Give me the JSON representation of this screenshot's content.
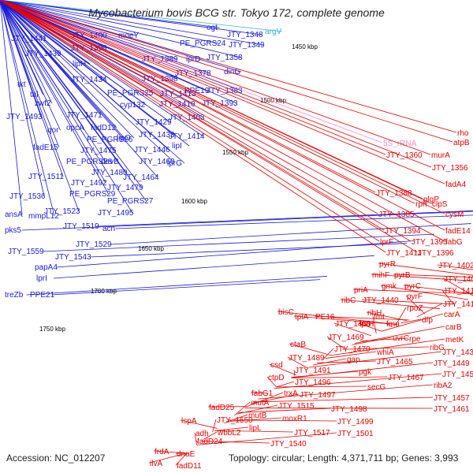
{
  "title": "Mycobacterium bovis BCG str. Tokyo 172, complete genome",
  "accession": "Accession: NC_012207",
  "topology": "Topology: circular; Length: 4,371,711 bp; Genes: 3,993",
  "colors": {
    "forward": "#1a1ad6",
    "reverse": "#e60000",
    "rna": "#ff8cc8",
    "trna": "#3ab0e0",
    "backbone": "#888888",
    "gc_mark": "#1e7a1e"
  },
  "kbp_ticks": [
    "1450 kbp",
    "1500 kbp",
    "1550 kbp",
    "1600 kbp",
    "1650 kbp",
    "1700 kbp",
    "1750 kbp"
  ],
  "blue_labels": [
    "JTY_1441",
    "JTY_1400",
    "moeY",
    "ogt",
    "JTY_1348",
    "argV",
    "JTY_1439",
    "JTY_1390",
    "PE_PGRS24",
    "JTY_1349",
    "lipH",
    "JTY_1389",
    "lprD",
    "JTY_1358",
    "JTY_1434",
    "JTY_1378",
    "dinG",
    "tkt",
    "JTY_1398",
    "PPE19",
    "JTY_1383",
    "tal",
    "PE_PGRS25",
    "JTY_1413",
    "zwf2",
    "cyp132",
    "JTY_1410",
    "JTY_1393",
    "JTY_1493",
    "JTY_1471",
    "JTY_1403",
    "qor",
    "opcA",
    "fadD12",
    "JTY_1429",
    "PE_PGRS26",
    "lipO",
    "JTY_1433",
    "JTY_1414",
    "fadE15",
    "JTY_1475",
    "lipI",
    "JTY_1446",
    "PE_PGRS28",
    "devB",
    "JTY_1460",
    "lprG",
    "JTY_1480",
    "JTY_1464",
    "JTY_1511",
    "JTY_1492",
    "JTY_1479",
    "PE_PGRS29",
    "PE_PGRS27",
    "JTY_1536",
    "JTY_1523",
    "JTY_1495",
    "pks5",
    "JTY_1519",
    "acn",
    "ansA",
    "mmpL12",
    "JTY_1529",
    "JTY_1559",
    "JTY_1543",
    "papA4",
    "lprI",
    "treZb",
    "PPE21"
  ],
  "red_labels": [
    "rho",
    "atpB",
    "5S_rRNA",
    "JTY_1360",
    "murA",
    "JTY_1356",
    "fadA4",
    "glgP",
    "JTY_1388",
    "rph",
    "clpS",
    "JTY_1385",
    "cysM",
    "JTY_1394",
    "fadE14",
    "lprF",
    "JTY_1395",
    "fabG",
    "JTY_1411",
    "JTY_1396",
    "pyrR",
    "JTY_1402",
    "mihF",
    "pyrB",
    "JTY_1405",
    "gmk",
    "pyrC",
    "priA",
    "pyrF",
    "JTY_1412",
    "ribC",
    "JTY_1440",
    "rpoZ",
    "JTY_1418",
    "ribH",
    "dfp",
    "carA",
    "bisC",
    "tpiA",
    "PE16",
    "fmt",
    "JTY_1468",
    "lprH",
    "fmu",
    "carB",
    "JTY_1469",
    "uvrC",
    "rpe",
    "metK",
    "JTY_1470",
    "whiA",
    "ribG",
    "JTY_1437",
    "ctaB",
    "gap",
    "JTY_1465",
    "JTY_1449",
    "JTY_1489",
    "pgk",
    "JTY_1467",
    "JTY_1450",
    "csd",
    "JTY_1491",
    "secG",
    "ribA2",
    "ctpD",
    "JTY_1496",
    "fabG1",
    "trxA",
    "JTY_1497",
    "JTY_1457",
    "fadD25",
    "mutA",
    "JTY_1515",
    "JTY_1498",
    "JTY_1461",
    "JTY_1550",
    "mutB",
    "moxR1",
    "JTY_1499",
    "adh",
    "wbbL2",
    "lipL",
    "JTY_1517",
    "JTY_1501",
    "lspA",
    "fadD24",
    "JTY_1540",
    "frdA",
    "dnaE",
    "ilvA",
    "fadD11"
  ]
}
